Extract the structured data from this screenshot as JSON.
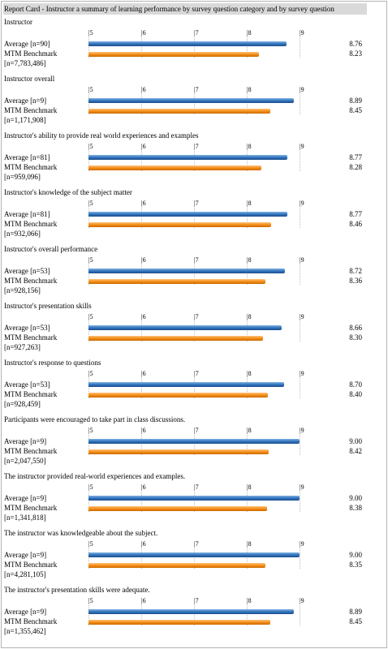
{
  "report_title": "Report Card - Instructor a summary of learning performance by survey question category and by survey question",
  "colors": {
    "average": "#2f6fb8",
    "benchmark": "#f28a12",
    "title_bg": "#d9d9d9"
  },
  "chart_data": {
    "type": "bar",
    "orientation": "horizontal",
    "title": "Report Card - Instructor a summary of learning performance by survey question category and by survey question",
    "xlim": [
      5,
      9
    ],
    "ticks": [
      "|5",
      "|6",
      "|7",
      "|8",
      "|9"
    ],
    "tick_values": [
      5,
      6,
      7,
      8,
      9
    ],
    "series_names": [
      "Average",
      "MTM Benchmark"
    ],
    "groups": [
      {
        "title": "Instructor",
        "avg_label": "Average [n=90]",
        "bench_label": "MTM Benchmark",
        "n_label": "[n=7,783,486]",
        "avg": 8.76,
        "bench": 8.23,
        "avg_text": "8.76",
        "bench_text": "8.23"
      },
      {
        "title": "Instructor overall",
        "avg_label": "Average [n=9]",
        "bench_label": "MTM Benchmark",
        "n_label": "[n=1,171,908]",
        "avg": 8.89,
        "bench": 8.45,
        "avg_text": "8.89",
        "bench_text": "8.45"
      },
      {
        "title": "Instructor's ability to provide real world experiences and examples",
        "avg_label": "Average [n=81]",
        "bench_label": "MTM Benchmark",
        "n_label": "[n=959,096]",
        "avg": 8.77,
        "bench": 8.28,
        "avg_text": "8.77",
        "bench_text": "8.28"
      },
      {
        "title": "Instructor's knowledge of the subject matter",
        "avg_label": "Average [n=81]",
        "bench_label": "MTM Benchmark",
        "n_label": "[n=932,066]",
        "avg": 8.77,
        "bench": 8.46,
        "avg_text": "8.77",
        "bench_text": "8.46"
      },
      {
        "title": "Instructor's overall performance",
        "avg_label": "Average [n=53]",
        "bench_label": "MTM Benchmark",
        "n_label": "[n=928,156]",
        "avg": 8.72,
        "bench": 8.36,
        "avg_text": "8.72",
        "bench_text": "8.36"
      },
      {
        "title": "Instructor's presentation skills",
        "avg_label": "Average [n=53]",
        "bench_label": "MTM Benchmark",
        "n_label": "[n=927,263]",
        "avg": 8.66,
        "bench": 8.3,
        "avg_text": "8.66",
        "bench_text": "8.30"
      },
      {
        "title": "Instructor's response to questions",
        "avg_label": "Average [n=53]",
        "bench_label": "MTM Benchmark",
        "n_label": "[n=928,459]",
        "avg": 8.7,
        "bench": 8.4,
        "avg_text": "8.70",
        "bench_text": "8.40"
      },
      {
        "title": "Participants were encouraged to take part in class discussions.",
        "avg_label": "Average [n=9]",
        "bench_label": "MTM Benchmark",
        "n_label": "[n=2,047,550]",
        "avg": 9.0,
        "bench": 8.42,
        "avg_text": "9.00",
        "bench_text": "8.42"
      },
      {
        "title": "The instructor provided real-world experiences and examples.",
        "avg_label": "Average [n=9]",
        "bench_label": "MTM Benchmark",
        "n_label": "[n=1,341,818]",
        "avg": 9.0,
        "bench": 8.38,
        "avg_text": "9.00",
        "bench_text": "8.38"
      },
      {
        "title": "The instructor was knowledgeable about the subject.",
        "avg_label": "Average [n=9]",
        "bench_label": "MTM Benchmark",
        "n_label": "[n=4,281,105]",
        "avg": 9.0,
        "bench": 8.35,
        "avg_text": "9.00",
        "bench_text": "8.35"
      },
      {
        "title": "The instructor's presentation skills were adequate.",
        "avg_label": "Average [n=9]",
        "bench_label": "MTM Benchmark",
        "n_label": "[n=1,355,462]",
        "avg": 8.89,
        "bench": 8.45,
        "avg_text": "8.89",
        "bench_text": "8.45"
      }
    ]
  }
}
